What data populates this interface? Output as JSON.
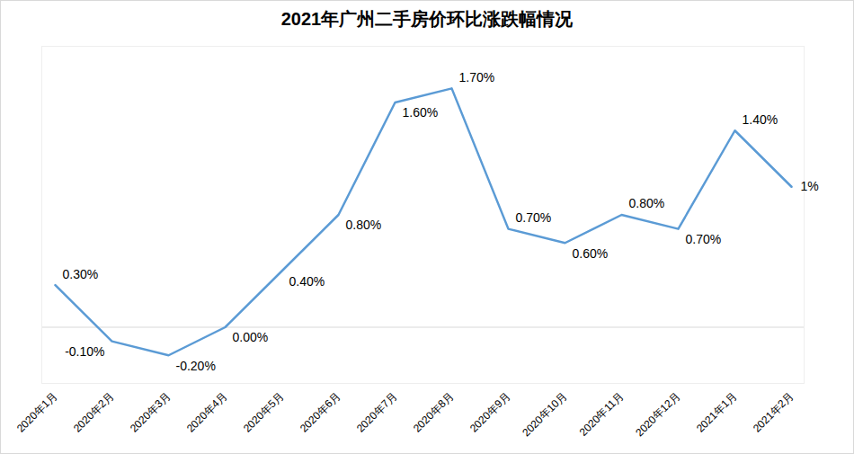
{
  "chart_data": {
    "type": "line",
    "title": "2021年广州二手房价环比涨跌幅情况",
    "categories": [
      "2020年1月",
      "2020年2月",
      "2020年3月",
      "2020年4月",
      "2020年5月",
      "2020年6月",
      "2020年7月",
      "2020年8月",
      "2020年9月",
      "2020年10月",
      "2020年11月",
      "2020年12月",
      "2021年1月",
      "2021年2月"
    ],
    "values": [
      0.3,
      -0.1,
      -0.2,
      0,
      0.4,
      0.8,
      1.6,
      1.7,
      0.7,
      0.6,
      0.8,
      0.7,
      1.4,
      1
    ],
    "value_labels": [
      "0.30%",
      "-0.10%",
      "-0.20%",
      "0.00%",
      "0.40%",
      "0.80%",
      "1.60%",
      "1.70%",
      "0.70%",
      "0.60%",
      "0.80%",
      "0.70%",
      "1.40%",
      "1%"
    ],
    "color": "#5b9bd5",
    "ylim": [
      -0.4,
      2.0
    ],
    "yticks": [
      0
    ],
    "grid": true,
    "data_labels": true,
    "tick_labels": "x"
  }
}
